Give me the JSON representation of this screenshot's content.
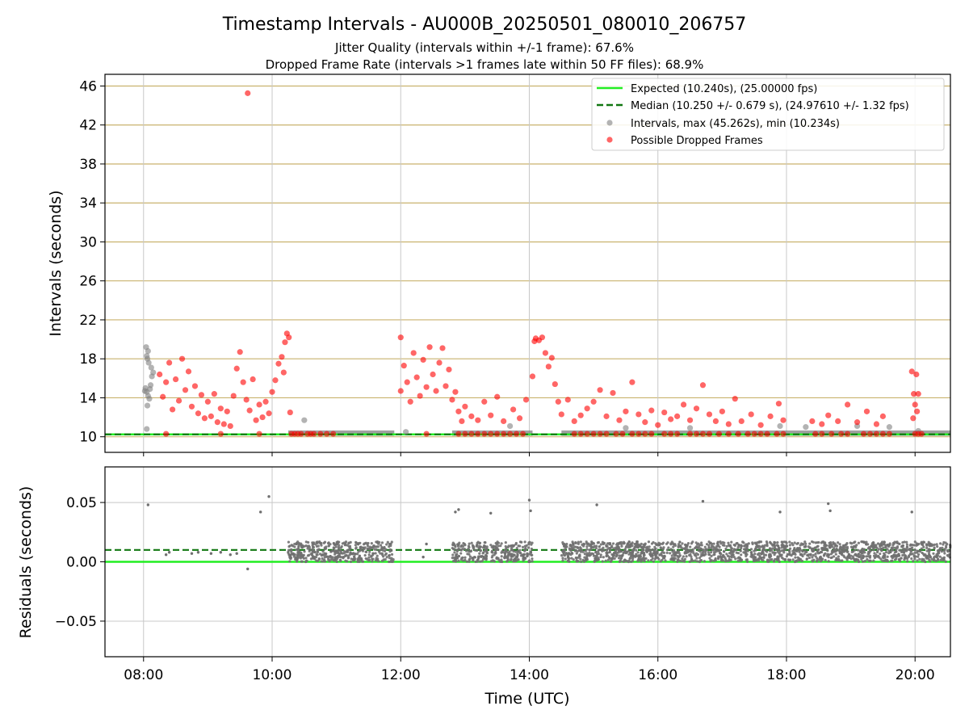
{
  "chart_data": [
    {
      "type": "scatter",
      "title": "Timestamp Intervals - AU000B_20250501_080010_206757",
      "subtitle_lines": [
        "Jitter Quality (intervals within +/-1 frame): 67.6%",
        "Dropped Frame Rate (intervals >1 frames late within 50 FF files): 68.9%"
      ],
      "xlabel": "",
      "ylabel": "Intervals (seconds)",
      "x_unit": "hours (UTC)",
      "xlim": [
        7.4,
        20.55
      ],
      "ylim": [
        8.4,
        47.2
      ],
      "x_ticks": [
        8,
        10,
        12,
        14,
        16,
        18,
        20
      ],
      "y_ticks": [
        10,
        14,
        18,
        22,
        26,
        30,
        34,
        38,
        42,
        46
      ],
      "grid": true,
      "legend_position": "top-right",
      "legend": [
        "Expected (10.240s), (25.00000 fps)",
        "Median (10.250 +/- 0.679 s), (24.97610 +/- 1.32 fps)",
        "Intervals, max (45.262s), min (10.234s)",
        "Possible Dropped Frames"
      ],
      "expected": 10.24,
      "median": 10.25,
      "colors": {
        "expected": "#22ee22",
        "median": "#117711",
        "intervals": "#808080",
        "dropped": "#ff0000",
        "y_grid": "#c9b26e",
        "x_grid": "#c8c8c8"
      },
      "series": [
        {
          "name": "Intervals, max (45.262s), min (10.234s)",
          "points": [
            [
              8.04,
              19.2
            ],
            [
              8.05,
              18.3
            ],
            [
              8.06,
              18.0
            ],
            [
              8.07,
              18.8
            ],
            [
              8.08,
              17.6
            ],
            [
              8.03,
              15.0
            ],
            [
              8.05,
              14.6
            ],
            [
              8.07,
              14.2
            ],
            [
              8.09,
              13.9
            ],
            [
              8.11,
              15.3
            ],
            [
              8.13,
              16.2
            ],
            [
              8.12,
              17.1
            ],
            [
              8.06,
              13.2
            ],
            [
              8.05,
              10.8
            ],
            [
              8.1,
              14.9
            ],
            [
              8.02,
              14.7
            ],
            [
              8.15,
              16.6
            ],
            [
              12.08,
              10.5
            ],
            [
              13.7,
              11.1
            ],
            [
              15.5,
              10.9
            ],
            [
              16.5,
              10.9
            ],
            [
              17.9,
              11.1
            ],
            [
              18.3,
              11.0
            ],
            [
              19.1,
              11.1
            ],
            [
              19.6,
              11.0
            ],
            [
              20.05,
              10.6
            ],
            [
              10.5,
              11.7
            ]
          ]
        },
        {
          "name": "Possible Dropped Frames",
          "points": [
            [
              9.62,
              45.262
            ],
            [
              8.25,
              16.4
            ],
            [
              8.3,
              14.1
            ],
            [
              8.35,
              15.6
            ],
            [
              8.4,
              17.6
            ],
            [
              8.45,
              12.8
            ],
            [
              8.5,
              15.9
            ],
            [
              8.55,
              13.7
            ],
            [
              8.6,
              18.0
            ],
            [
              8.65,
              14.8
            ],
            [
              8.7,
              16.7
            ],
            [
              8.75,
              13.1
            ],
            [
              8.8,
              15.2
            ],
            [
              8.85,
              12.4
            ],
            [
              8.9,
              14.3
            ],
            [
              8.95,
              11.9
            ],
            [
              9.0,
              13.6
            ],
            [
              9.05,
              12.1
            ],
            [
              9.1,
              14.4
            ],
            [
              9.15,
              11.5
            ],
            [
              9.2,
              12.9
            ],
            [
              9.25,
              11.3
            ],
            [
              9.3,
              12.6
            ],
            [
              9.35,
              11.1
            ],
            [
              9.4,
              14.2
            ],
            [
              9.45,
              17.0
            ],
            [
              9.5,
              18.7
            ],
            [
              9.55,
              15.6
            ],
            [
              9.6,
              13.8
            ],
            [
              9.65,
              12.7
            ],
            [
              9.7,
              15.9
            ],
            [
              9.75,
              11.7
            ],
            [
              9.8,
              13.3
            ],
            [
              9.85,
              12.0
            ],
            [
              9.9,
              13.6
            ],
            [
              9.95,
              12.4
            ],
            [
              10.0,
              14.6
            ],
            [
              10.05,
              15.8
            ],
            [
              10.1,
              17.5
            ],
            [
              10.15,
              18.2
            ],
            [
              10.2,
              19.7
            ],
            [
              10.23,
              20.6
            ],
            [
              10.26,
              20.2
            ],
            [
              10.18,
              16.6
            ],
            [
              10.28,
              12.5
            ],
            [
              12.0,
              14.7
            ],
            [
              12.0,
              20.2
            ],
            [
              12.05,
              17.3
            ],
            [
              12.1,
              15.6
            ],
            [
              12.15,
              13.6
            ],
            [
              12.2,
              18.6
            ],
            [
              12.25,
              16.1
            ],
            [
              12.3,
              14.2
            ],
            [
              12.35,
              17.9
            ],
            [
              12.4,
              15.1
            ],
            [
              12.45,
              19.2
            ],
            [
              12.5,
              16.4
            ],
            [
              12.55,
              14.7
            ],
            [
              12.6,
              17.6
            ],
            [
              12.65,
              19.1
            ],
            [
              12.7,
              15.2
            ],
            [
              12.75,
              16.9
            ],
            [
              12.8,
              13.8
            ],
            [
              12.85,
              14.6
            ],
            [
              12.9,
              12.6
            ],
            [
              12.95,
              11.6
            ],
            [
              13.0,
              13.1
            ],
            [
              13.1,
              12.1
            ],
            [
              13.2,
              11.7
            ],
            [
              13.3,
              13.6
            ],
            [
              13.4,
              12.2
            ],
            [
              13.5,
              14.1
            ],
            [
              13.6,
              11.6
            ],
            [
              13.75,
              12.8
            ],
            [
              13.85,
              11.9
            ],
            [
              13.95,
              13.8
            ],
            [
              14.05,
              16.2
            ],
            [
              14.08,
              19.8
            ],
            [
              14.1,
              20.1
            ],
            [
              14.15,
              19.9
            ],
            [
              14.2,
              20.2
            ],
            [
              14.25,
              18.6
            ],
            [
              14.3,
              17.2
            ],
            [
              14.35,
              18.1
            ],
            [
              14.4,
              15.4
            ],
            [
              14.45,
              13.6
            ],
            [
              14.5,
              12.3
            ],
            [
              14.6,
              13.8
            ],
            [
              14.7,
              11.6
            ],
            [
              14.8,
              12.2
            ],
            [
              14.9,
              12.9
            ],
            [
              15.0,
              13.6
            ],
            [
              15.1,
              14.8
            ],
            [
              15.2,
              12.1
            ],
            [
              15.3,
              14.5
            ],
            [
              15.4,
              11.7
            ],
            [
              15.5,
              12.6
            ],
            [
              15.6,
              15.6
            ],
            [
              15.7,
              12.3
            ],
            [
              15.8,
              11.5
            ],
            [
              15.9,
              12.7
            ],
            [
              16.0,
              11.2
            ],
            [
              16.1,
              12.5
            ],
            [
              16.2,
              11.8
            ],
            [
              16.3,
              12.1
            ],
            [
              16.4,
              13.3
            ],
            [
              16.5,
              11.7
            ],
            [
              16.6,
              12.9
            ],
            [
              16.7,
              15.3
            ],
            [
              16.8,
              12.3
            ],
            [
              16.9,
              11.6
            ],
            [
              17.0,
              12.6
            ],
            [
              17.1,
              11.3
            ],
            [
              17.2,
              13.9
            ],
            [
              17.3,
              11.6
            ],
            [
              17.45,
              12.3
            ],
            [
              17.6,
              11.2
            ],
            [
              17.75,
              12.1
            ],
            [
              17.88,
              13.4
            ],
            [
              17.95,
              11.7
            ],
            [
              18.4,
              11.6
            ],
            [
              18.55,
              11.3
            ],
            [
              18.65,
              12.2
            ],
            [
              18.8,
              11.6
            ],
            [
              18.95,
              13.3
            ],
            [
              19.1,
              11.5
            ],
            [
              19.25,
              12.6
            ],
            [
              19.4,
              11.3
            ],
            [
              19.5,
              12.1
            ],
            [
              19.95,
              16.7
            ],
            [
              19.98,
              14.4
            ],
            [
              20.0,
              13.3
            ],
            [
              20.02,
              16.4
            ],
            [
              20.05,
              14.4
            ],
            [
              19.97,
              11.9
            ],
            [
              20.03,
              12.6
            ],
            [
              8.35,
              10.3
            ],
            [
              9.2,
              10.3
            ],
            [
              9.8,
              10.3
            ],
            [
              10.3,
              10.3
            ],
            [
              10.35,
              10.3
            ],
            [
              10.4,
              10.3
            ],
            [
              10.45,
              10.3
            ],
            [
              10.55,
              10.3
            ],
            [
              10.6,
              10.3
            ],
            [
              10.65,
              10.3
            ],
            [
              10.75,
              10.3
            ],
            [
              10.85,
              10.3
            ],
            [
              10.95,
              10.3
            ],
            [
              12.4,
              10.3
            ],
            [
              12.9,
              10.3
            ],
            [
              13.0,
              10.3
            ],
            [
              13.1,
              10.3
            ],
            [
              13.2,
              10.3
            ],
            [
              13.3,
              10.3
            ],
            [
              13.4,
              10.3
            ],
            [
              13.5,
              10.3
            ],
            [
              13.6,
              10.3
            ],
            [
              13.7,
              10.3
            ],
            [
              13.8,
              10.3
            ],
            [
              13.9,
              10.3
            ],
            [
              14.7,
              10.3
            ],
            [
              14.8,
              10.3
            ],
            [
              14.9,
              10.3
            ],
            [
              15.0,
              10.3
            ],
            [
              15.1,
              10.3
            ],
            [
              15.2,
              10.3
            ],
            [
              15.35,
              10.3
            ],
            [
              15.45,
              10.3
            ],
            [
              15.6,
              10.3
            ],
            [
              15.7,
              10.3
            ],
            [
              15.8,
              10.3
            ],
            [
              15.9,
              10.3
            ],
            [
              16.1,
              10.3
            ],
            [
              16.2,
              10.3
            ],
            [
              16.3,
              10.3
            ],
            [
              16.5,
              10.3
            ],
            [
              16.6,
              10.3
            ],
            [
              16.7,
              10.3
            ],
            [
              16.8,
              10.3
            ],
            [
              16.95,
              10.3
            ],
            [
              17.1,
              10.3
            ],
            [
              17.25,
              10.3
            ],
            [
              17.4,
              10.3
            ],
            [
              17.5,
              10.3
            ],
            [
              17.6,
              10.3
            ],
            [
              17.7,
              10.3
            ],
            [
              17.85,
              10.3
            ],
            [
              17.95,
              10.3
            ],
            [
              18.45,
              10.3
            ],
            [
              18.55,
              10.3
            ],
            [
              18.7,
              10.3
            ],
            [
              18.85,
              10.3
            ],
            [
              18.95,
              10.3
            ],
            [
              19.2,
              10.3
            ],
            [
              19.3,
              10.3
            ],
            [
              19.4,
              10.3
            ],
            [
              19.5,
              10.3
            ],
            [
              19.6,
              10.3
            ],
            [
              20.0,
              10.3
            ],
            [
              20.05,
              10.3
            ],
            [
              20.1,
              10.3
            ]
          ]
        }
      ]
    },
    {
      "type": "scatter",
      "xlabel": "Time (UTC)",
      "ylabel": "Residuals (seconds)",
      "xlim": [
        7.4,
        20.55
      ],
      "ylim": [
        -0.08,
        0.08
      ],
      "x_ticks": [
        8,
        10,
        12,
        14,
        16,
        18,
        20
      ],
      "x_tick_labels": [
        "08:00",
        "10:00",
        "12:00",
        "14:00",
        "16:00",
        "18:00",
        "20:00"
      ],
      "y_ticks": [
        -0.05,
        0.0,
        0.05
      ],
      "y_tick_labels": [
        "−0.05",
        "0.00",
        "0.05"
      ],
      "grid": true,
      "zero_line": 0.0,
      "median_line": 0.01,
      "dense_bands": [
        [
          10.25,
          11.9
        ],
        [
          12.8,
          13.35
        ],
        [
          13.4,
          14.05
        ],
        [
          14.5,
          20.55
        ]
      ],
      "residual_band": [
        0.0,
        0.017
      ],
      "outliers": [
        [
          8.07,
          0.048
        ],
        [
          9.62,
          -0.006
        ],
        [
          9.82,
          0.042
        ],
        [
          9.95,
          0.055
        ],
        [
          12.85,
          0.042
        ],
        [
          12.9,
          0.044
        ],
        [
          13.4,
          0.041
        ],
        [
          14.0,
          0.052
        ],
        [
          14.02,
          0.043
        ],
        [
          15.05,
          0.048
        ],
        [
          16.7,
          0.051
        ],
        [
          17.9,
          0.042
        ],
        [
          18.65,
          0.049
        ],
        [
          18.68,
          0.043
        ],
        [
          19.95,
          0.042
        ],
        [
          8.35,
          0.006
        ],
        [
          8.4,
          0.008
        ],
        [
          8.75,
          0.007
        ],
        [
          8.85,
          0.008
        ],
        [
          9.05,
          0.007
        ],
        [
          9.2,
          0.008
        ],
        [
          9.35,
          0.006
        ],
        [
          9.45,
          0.007
        ],
        [
          12.35,
          0.004
        ],
        [
          12.4,
          0.015
        ]
      ]
    }
  ]
}
